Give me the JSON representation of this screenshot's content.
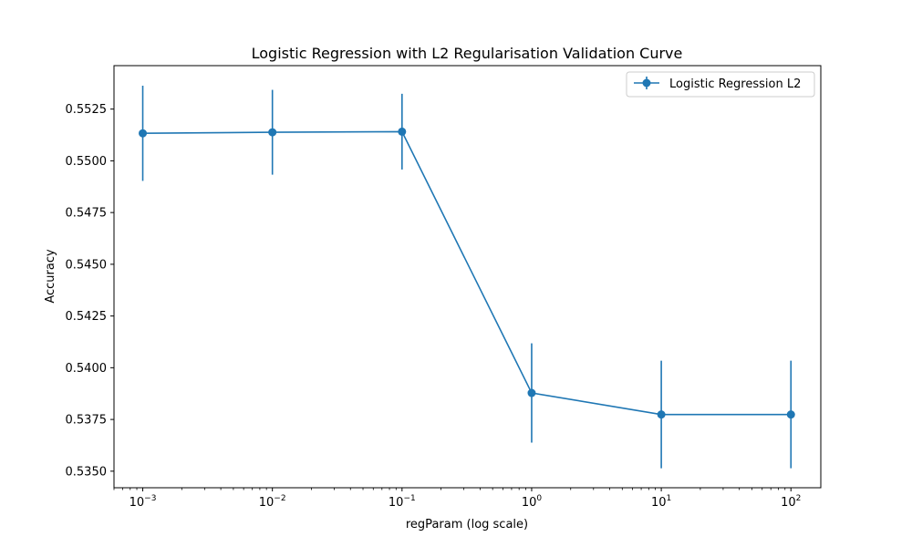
{
  "chart_data": {
    "type": "line",
    "title": "Logistic Regression with L2 Regularisation Validation Curve",
    "xlabel": "regParam (log scale)",
    "ylabel": "Accuracy",
    "x_scale": "log",
    "xlim": [
      0.0006,
      170
    ],
    "ylim": [
      0.5342,
      0.5546
    ],
    "x_ticks": [
      {
        "value": 0.001,
        "base": "10",
        "exp": "−3"
      },
      {
        "value": 0.01,
        "base": "10",
        "exp": "−2"
      },
      {
        "value": 0.1,
        "base": "10",
        "exp": "−1"
      },
      {
        "value": 1,
        "base": "10",
        "exp": "0"
      },
      {
        "value": 10,
        "base": "10",
        "exp": "1"
      },
      {
        "value": 100,
        "base": "10",
        "exp": "2"
      }
    ],
    "y_ticks": [
      {
        "value": 0.535,
        "label": "0.5350"
      },
      {
        "value": 0.5375,
        "label": "0.5375"
      },
      {
        "value": 0.54,
        "label": "0.5400"
      },
      {
        "value": 0.5425,
        "label": "0.5425"
      },
      {
        "value": 0.545,
        "label": "0.5450"
      },
      {
        "value": 0.5475,
        "label": "0.5475"
      },
      {
        "value": 0.55,
        "label": "0.5500"
      },
      {
        "value": 0.5525,
        "label": "0.5525"
      }
    ],
    "grid": false,
    "legend_position": "top-right",
    "series": [
      {
        "name": "Logistic Regression L2",
        "color": "#1f77b4",
        "marker": "circle",
        "x": [
          0.001,
          0.01,
          0.1,
          1,
          10,
          100
        ],
        "y": [
          0.55133,
          0.55138,
          0.55141,
          0.53878,
          0.53774,
          0.53774
        ],
        "error": [
          0.0023,
          0.00205,
          0.00183,
          0.0024,
          0.0026,
          0.0026
        ]
      }
    ]
  }
}
